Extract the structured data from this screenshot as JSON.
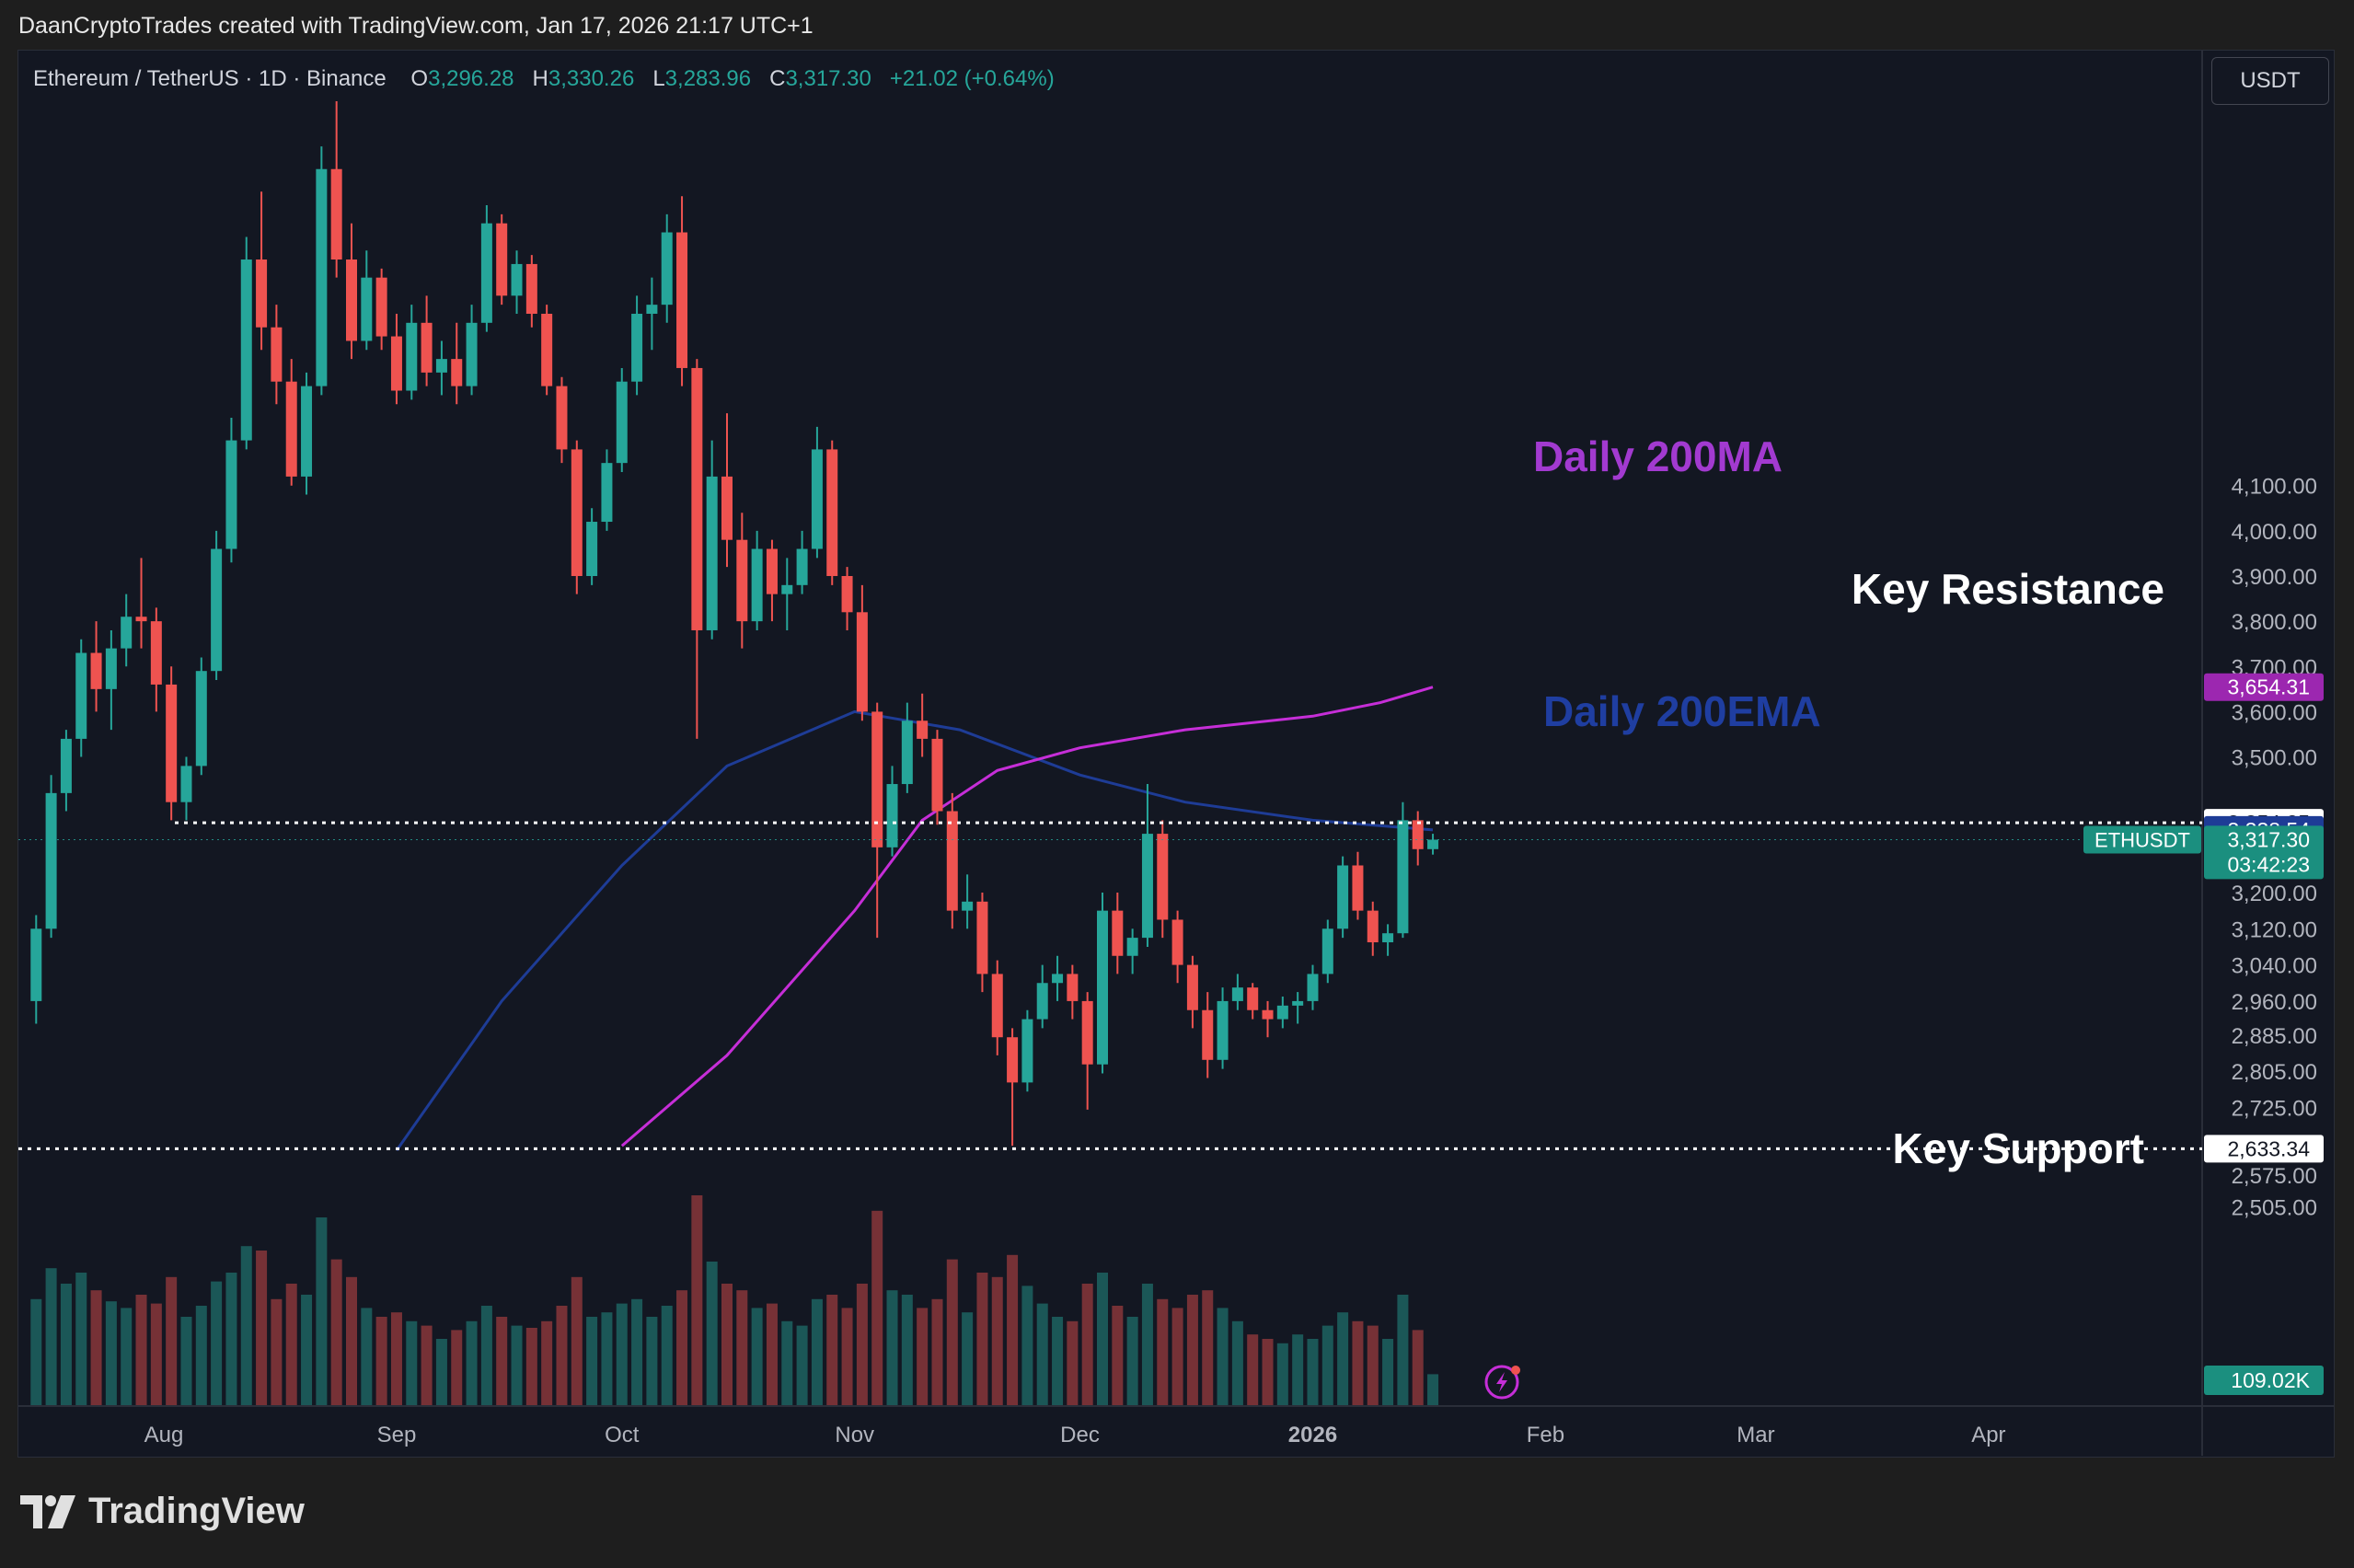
{
  "credit": "DaanCryptoTrades created with TradingView.com, Jan 17, 2026 21:17 UTC+1",
  "brand": "TradingView",
  "legend": {
    "symbol": "Ethereum / TetherUS · 1D · Binance",
    "open_label": "O",
    "open": "3,296.28",
    "high_label": "H",
    "high": "3,330.26",
    "low_label": "L",
    "low": "3,283.96",
    "close_label": "C",
    "close": "3,317.30",
    "change": "+21.02 (+0.64%)"
  },
  "currency": "USDT",
  "colors": {
    "up": "#26a69a",
    "down": "#ef5350",
    "ma200": "#c62ed8",
    "ema200": "#1e3c96",
    "ma_label": "#a23ad0",
    "ema_label": "#1f3ea1"
  },
  "icons": [
    "tradingview-logo-icon",
    "lightning-icon"
  ],
  "chart_data": {
    "type": "candlestick",
    "title": "",
    "y_axis_ticks": [
      4100,
      4000,
      3900,
      3800,
      3700,
      3600,
      3500,
      3200,
      3120,
      3040,
      2960,
      2885,
      2805,
      2725,
      2575,
      2505
    ],
    "y_tick_labels": [
      "4,100.00",
      "4,000.00",
      "3,900.00",
      "3,800.00",
      "3,700.00",
      "3,600.00",
      "3,500.00",
      "3,200.00",
      "3,120.00",
      "3,040.00",
      "2,960.00",
      "2,885.00",
      "2,805.00",
      "2,725.00",
      "2,575.00",
      "2,505.00"
    ],
    "x_axis_labels": [
      {
        "label": "Aug",
        "date": "2025-08-01",
        "bold": false
      },
      {
        "label": "Sep",
        "date": "2025-09-01",
        "bold": false
      },
      {
        "label": "Oct",
        "date": "2025-10-01",
        "bold": false
      },
      {
        "label": "Nov",
        "date": "2025-11-01",
        "bold": false
      },
      {
        "label": "Dec",
        "date": "2025-12-01",
        "bold": false
      },
      {
        "label": "2026",
        "date": "2026-01-01",
        "bold": true
      },
      {
        "label": "Feb",
        "date": "2026-02-01",
        "bold": false
      },
      {
        "label": "Mar",
        "date": "2026-03-01",
        "bold": false
      },
      {
        "label": "Apr",
        "date": "2026-04-01",
        "bold": false
      }
    ],
    "price_tags": [
      {
        "name": "Daily 200MA",
        "value": 3654.31,
        "text": "3,654.31",
        "bg": "#9c27b0",
        "fg": "#ffffff"
      },
      {
        "name": "Key Resistance",
        "value": 3354.25,
        "text": "3,354.25",
        "bg": "#ffffff",
        "fg": "#131722"
      },
      {
        "name": "Daily 200EMA",
        "value": 3338.54,
        "text": "3,338.54",
        "bg": "#1e3c96",
        "fg": "#ffffff"
      },
      {
        "name": "ETHUSDT",
        "value": 3317.3,
        "text": "3,317.30",
        "countdown": "03:42:23",
        "bg": "#1b8f7f",
        "fg": "#ffffff"
      },
      {
        "name": "Key Support",
        "value": 2633.34,
        "text": "2,633.34",
        "bg": "#ffffff",
        "fg": "#131722"
      }
    ],
    "symbol_tag": "ETHUSDT",
    "volume_label": "109.02K",
    "annotations": [
      {
        "text": "Daily 200MA",
        "color": "#a23ad0"
      },
      {
        "text": "Key Resistance",
        "color": "#ffffff"
      },
      {
        "text": "Daily 200EMA",
        "color": "#1f3ea1"
      },
      {
        "text": "Key Support",
        "color": "#ffffff"
      }
    ],
    "levels": {
      "resistance": 3354.25,
      "support": 2633.34
    },
    "ohlc": [
      [
        "2025-07-15",
        2960,
        3150,
        2910,
        3120,
        48
      ],
      [
        "2025-07-17",
        3120,
        3460,
        3100,
        3420,
        62
      ],
      [
        "2025-07-19",
        3420,
        3560,
        3380,
        3540,
        55
      ],
      [
        "2025-07-21",
        3540,
        3760,
        3500,
        3730,
        60
      ],
      [
        "2025-07-23",
        3730,
        3800,
        3600,
        3650,
        52
      ],
      [
        "2025-07-25",
        3650,
        3780,
        3560,
        3740,
        47
      ],
      [
        "2025-07-27",
        3740,
        3860,
        3700,
        3810,
        44
      ],
      [
        "2025-07-29",
        3810,
        3940,
        3740,
        3800,
        50
      ],
      [
        "2025-07-31",
        3800,
        3830,
        3600,
        3660,
        46
      ],
      [
        "2025-08-02",
        3660,
        3700,
        3360,
        3400,
        58
      ],
      [
        "2025-08-04",
        3400,
        3500,
        3360,
        3480,
        40
      ],
      [
        "2025-08-06",
        3480,
        3720,
        3460,
        3690,
        45
      ],
      [
        "2025-08-08",
        3690,
        4000,
        3670,
        3960,
        56
      ],
      [
        "2025-08-10",
        3960,
        4250,
        3930,
        4200,
        60
      ],
      [
        "2025-08-12",
        4200,
        4650,
        4180,
        4600,
        72
      ],
      [
        "2025-08-14",
        4600,
        4750,
        4400,
        4450,
        70
      ],
      [
        "2025-08-16",
        4450,
        4500,
        4280,
        4330,
        48
      ],
      [
        "2025-08-18",
        4330,
        4380,
        4100,
        4120,
        55
      ],
      [
        "2025-08-20",
        4120,
        4350,
        4080,
        4320,
        50
      ],
      [
        "2025-08-22",
        4320,
        4850,
        4300,
        4800,
        85
      ],
      [
        "2025-08-24",
        4800,
        4950,
        4560,
        4600,
        66
      ],
      [
        "2025-08-26",
        4600,
        4680,
        4380,
        4420,
        58
      ],
      [
        "2025-08-28",
        4420,
        4620,
        4400,
        4560,
        44
      ],
      [
        "2025-08-30",
        4560,
        4580,
        4400,
        4430,
        40
      ],
      [
        "2025-09-01",
        4430,
        4480,
        4280,
        4310,
        42
      ],
      [
        "2025-09-03",
        4310,
        4500,
        4290,
        4460,
        38
      ],
      [
        "2025-09-05",
        4460,
        4520,
        4320,
        4350,
        36
      ],
      [
        "2025-09-07",
        4350,
        4420,
        4300,
        4380,
        30
      ],
      [
        "2025-09-09",
        4380,
        4460,
        4280,
        4320,
        34
      ],
      [
        "2025-09-11",
        4320,
        4500,
        4300,
        4460,
        38
      ],
      [
        "2025-09-13",
        4460,
        4720,
        4440,
        4680,
        45
      ],
      [
        "2025-09-15",
        4680,
        4700,
        4500,
        4520,
        40
      ],
      [
        "2025-09-17",
        4520,
        4620,
        4480,
        4590,
        36
      ],
      [
        "2025-09-19",
        4590,
        4610,
        4450,
        4480,
        35
      ],
      [
        "2025-09-21",
        4480,
        4500,
        4300,
        4320,
        38
      ],
      [
        "2025-09-23",
        4320,
        4340,
        4150,
        4180,
        45
      ],
      [
        "2025-09-25",
        4180,
        4200,
        3860,
        3900,
        58
      ],
      [
        "2025-09-27",
        3900,
        4050,
        3880,
        4020,
        40
      ],
      [
        "2025-09-29",
        4020,
        4180,
        4000,
        4150,
        42
      ],
      [
        "2025-10-01",
        4150,
        4360,
        4130,
        4330,
        46
      ],
      [
        "2025-10-03",
        4330,
        4520,
        4300,
        4480,
        48
      ],
      [
        "2025-10-05",
        4480,
        4560,
        4400,
        4500,
        40
      ],
      [
        "2025-10-07",
        4500,
        4700,
        4460,
        4660,
        45
      ],
      [
        "2025-10-09",
        4660,
        4740,
        4320,
        4360,
        52
      ],
      [
        "2025-10-11",
        4360,
        4380,
        3540,
        3780,
        95
      ],
      [
        "2025-10-13",
        3780,
        4200,
        3760,
        4120,
        65
      ],
      [
        "2025-10-15",
        4120,
        4260,
        3920,
        3980,
        55
      ],
      [
        "2025-10-17",
        3980,
        4040,
        3740,
        3800,
        52
      ],
      [
        "2025-10-19",
        3800,
        4000,
        3780,
        3960,
        44
      ],
      [
        "2025-10-21",
        3960,
        3980,
        3800,
        3860,
        46
      ],
      [
        "2025-10-23",
        3860,
        3940,
        3780,
        3880,
        38
      ],
      [
        "2025-10-25",
        3880,
        4000,
        3860,
        3960,
        36
      ],
      [
        "2025-10-27",
        3960,
        4230,
        3940,
        4180,
        48
      ],
      [
        "2025-10-29",
        4180,
        4200,
        3880,
        3900,
        50
      ],
      [
        "2025-10-31",
        3900,
        3920,
        3780,
        3820,
        44
      ],
      [
        "2025-11-02",
        3820,
        3880,
        3580,
        3600,
        55
      ],
      [
        "2025-11-04",
        3600,
        3620,
        3100,
        3300,
        88
      ],
      [
        "2025-11-06",
        3300,
        3480,
        3280,
        3440,
        52
      ],
      [
        "2025-11-08",
        3440,
        3620,
        3420,
        3580,
        50
      ],
      [
        "2025-11-10",
        3580,
        3640,
        3500,
        3540,
        44
      ],
      [
        "2025-11-12",
        3540,
        3560,
        3350,
        3380,
        48
      ],
      [
        "2025-11-14",
        3380,
        3420,
        3120,
        3160,
        66
      ],
      [
        "2025-11-16",
        3160,
        3240,
        3120,
        3180,
        42
      ],
      [
        "2025-11-18",
        3180,
        3200,
        2980,
        3020,
        60
      ],
      [
        "2025-11-20",
        3020,
        3050,
        2840,
        2880,
        58
      ],
      [
        "2025-11-22",
        2880,
        2900,
        2640,
        2780,
        68
      ],
      [
        "2025-11-24",
        2780,
        2940,
        2760,
        2920,
        54
      ],
      [
        "2025-11-26",
        2920,
        3040,
        2900,
        3000,
        46
      ],
      [
        "2025-11-28",
        3000,
        3060,
        2960,
        3020,
        40
      ],
      [
        "2025-11-30",
        3020,
        3040,
        2920,
        2960,
        38
      ],
      [
        "2025-12-02",
        2960,
        2980,
        2720,
        2820,
        55
      ],
      [
        "2025-12-04",
        2820,
        3200,
        2800,
        3160,
        60
      ],
      [
        "2025-12-06",
        3160,
        3200,
        3020,
        3060,
        45
      ],
      [
        "2025-12-08",
        3060,
        3120,
        3020,
        3100,
        40
      ],
      [
        "2025-12-10",
        3100,
        3440,
        3080,
        3330,
        55
      ],
      [
        "2025-12-12",
        3330,
        3360,
        3100,
        3140,
        48
      ],
      [
        "2025-12-14",
        3140,
        3160,
        3000,
        3040,
        44
      ],
      [
        "2025-12-16",
        3040,
        3060,
        2900,
        2940,
        50
      ],
      [
        "2025-12-18",
        2940,
        2980,
        2790,
        2830,
        52
      ],
      [
        "2025-12-20",
        2830,
        2990,
        2810,
        2960,
        44
      ],
      [
        "2025-12-22",
        2960,
        3020,
        2940,
        2990,
        38
      ],
      [
        "2025-12-24",
        2990,
        3000,
        2920,
        2940,
        32
      ],
      [
        "2025-12-26",
        2940,
        2960,
        2880,
        2920,
        30
      ],
      [
        "2025-12-28",
        2920,
        2970,
        2900,
        2950,
        28
      ],
      [
        "2025-12-30",
        2950,
        2980,
        2910,
        2960,
        32
      ],
      [
        "2026-01-01",
        2960,
        3040,
        2940,
        3020,
        30
      ],
      [
        "2026-01-03",
        3020,
        3140,
        3000,
        3120,
        36
      ],
      [
        "2026-01-05",
        3120,
        3280,
        3100,
        3260,
        42
      ],
      [
        "2026-01-07",
        3260,
        3290,
        3140,
        3160,
        38
      ],
      [
        "2026-01-09",
        3160,
        3180,
        3060,
        3090,
        36
      ],
      [
        "2026-01-11",
        3090,
        3130,
        3060,
        3110,
        30
      ],
      [
        "2026-01-13",
        3110,
        3400,
        3100,
        3360,
        50
      ],
      [
        "2026-01-15",
        3360,
        3380,
        3260,
        3296,
        34
      ],
      [
        "2026-01-17",
        3296,
        3330,
        3284,
        3317,
        14
      ]
    ],
    "ma200_points": [
      [
        "2025-10-01",
        2640
      ],
      [
        "2025-10-15",
        2840
      ],
      [
        "2025-11-01",
        3160
      ],
      [
        "2025-11-10",
        3360
      ],
      [
        "2025-11-20",
        3470
      ],
      [
        "2025-12-01",
        3520
      ],
      [
        "2025-12-15",
        3560
      ],
      [
        "2026-01-01",
        3590
      ],
      [
        "2026-01-10",
        3620
      ],
      [
        "2026-01-17",
        3654.31
      ]
    ],
    "ema200_points": [
      [
        "2025-09-01",
        2630
      ],
      [
        "2025-09-15",
        2960
      ],
      [
        "2025-10-01",
        3260
      ],
      [
        "2025-10-15",
        3480
      ],
      [
        "2025-11-01",
        3600
      ],
      [
        "2025-11-15",
        3560
      ],
      [
        "2025-12-01",
        3460
      ],
      [
        "2025-12-15",
        3400
      ],
      [
        "2026-01-01",
        3360
      ],
      [
        "2026-01-17",
        3338.54
      ]
    ]
  }
}
